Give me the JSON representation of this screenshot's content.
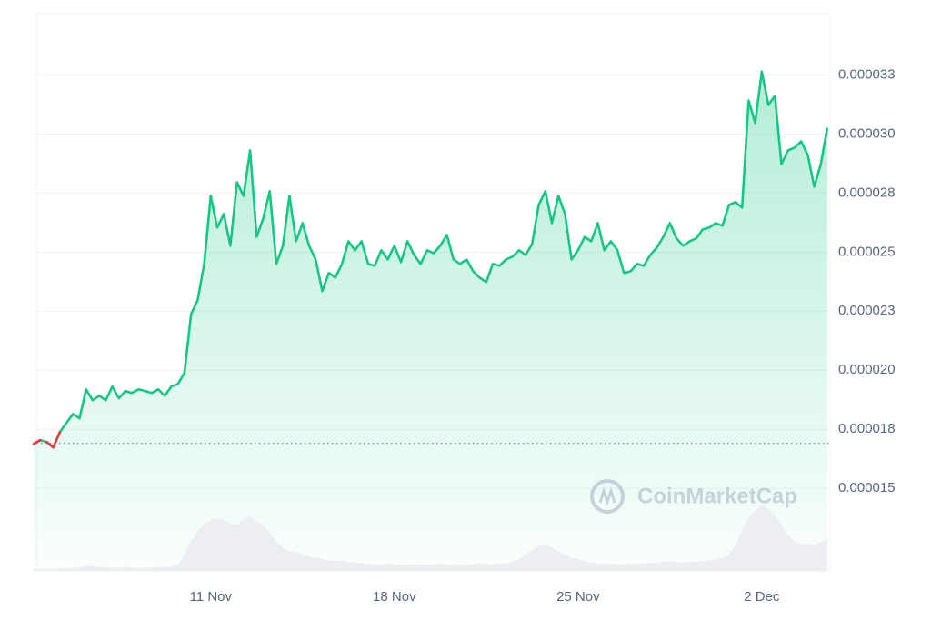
{
  "chart_data": {
    "type": "line",
    "categories": [
      null,
      null,
      null,
      null,
      null,
      null,
      null,
      null,
      null,
      null,
      null,
      null,
      null,
      null,
      null,
      null,
      null,
      null,
      null,
      null,
      null,
      null,
      null,
      null,
      null,
      null,
      null,
      "11 Nov",
      null,
      null,
      null,
      null,
      null,
      null,
      null,
      null,
      null,
      null,
      null,
      null,
      null,
      null,
      null,
      null,
      null,
      null,
      null,
      null,
      null,
      null,
      null,
      null,
      null,
      null,
      null,
      "18 Nov",
      null,
      null,
      null,
      null,
      null,
      null,
      null,
      null,
      null,
      null,
      null,
      null,
      null,
      null,
      null,
      null,
      null,
      null,
      null,
      null,
      null,
      null,
      null,
      null,
      null,
      null,
      null,
      "25 Nov",
      null,
      null,
      null,
      null,
      null,
      null,
      null,
      null,
      null,
      null,
      null,
      null,
      null,
      null,
      null,
      null,
      null,
      null,
      null,
      null,
      null,
      null,
      null,
      null,
      null,
      null,
      null,
      "2 Dec",
      null,
      null,
      null,
      null,
      null,
      null,
      null,
      null,
      null,
      null
    ],
    "series": [
      {
        "color": "#16c784",
        "values": [
          1.688e-05,
          1.704e-05,
          1.696e-05,
          1.673e-05,
          1.738e-05,
          1.777e-05,
          1.815e-05,
          1.796e-05,
          1.919e-05,
          1.873e-05,
          1.892e-05,
          1.873e-05,
          1.931e-05,
          1.881e-05,
          1.912e-05,
          1.904e-05,
          1.919e-05,
          1.912e-05,
          1.904e-05,
          1.919e-05,
          1.892e-05,
          1.931e-05,
          1.942e-05,
          1.988e-05,
          2.238e-05,
          2.296e-05,
          2.45e-05,
          2.738e-05,
          2.604e-05,
          2.662e-05,
          2.527e-05,
          2.796e-05,
          2.738e-05,
          2.931e-05,
          2.565e-05,
          2.642e-05,
          2.758e-05,
          2.45e-05,
          2.527e-05,
          2.738e-05,
          2.546e-05,
          2.623e-05,
          2.527e-05,
          2.469e-05,
          2.335e-05,
          2.412e-05,
          2.392e-05,
          2.45e-05,
          2.546e-05,
          2.508e-05,
          2.546e-05,
          2.45e-05,
          2.442e-05,
          2.508e-05,
          2.469e-05,
          2.527e-05,
          2.458e-05,
          2.546e-05,
          2.488e-05,
          2.45e-05,
          2.508e-05,
          2.496e-05,
          2.527e-05,
          2.573e-05,
          2.469e-05,
          2.45e-05,
          2.469e-05,
          2.419e-05,
          2.392e-05,
          2.373e-05,
          2.45e-05,
          2.442e-05,
          2.469e-05,
          2.481e-05,
          2.508e-05,
          2.488e-05,
          2.535e-05,
          2.7e-05,
          2.758e-05,
          2.623e-05,
          2.738e-05,
          2.662e-05,
          2.469e-05,
          2.508e-05,
          2.565e-05,
          2.546e-05,
          2.623e-05,
          2.508e-05,
          2.546e-05,
          2.508e-05,
          2.412e-05,
          2.419e-05,
          2.45e-05,
          2.442e-05,
          2.488e-05,
          2.519e-05,
          2.565e-05,
          2.623e-05,
          2.558e-05,
          2.527e-05,
          2.546e-05,
          2.558e-05,
          2.596e-05,
          2.604e-05,
          2.623e-05,
          2.612e-05,
          2.7e-05,
          2.712e-05,
          2.688e-05,
          3.142e-05,
          3.046e-05,
          3.265e-05,
          3.123e-05,
          3.162e-05,
          2.873e-05,
          2.931e-05,
          2.942e-05,
          2.969e-05,
          2.912e-05,
          2.777e-05,
          2.873e-05,
          3.027e-05
        ]
      }
    ],
    "down_color": "#ea3943",
    "baseline": 1.69e-05,
    "ylim": [
      1.15e-05,
      3.51e-05
    ],
    "yticks": [
      1.5e-05,
      {
        "value": 1.75e-05,
        "label": "0.000018"
      },
      {
        "value": 2e-05,
        "label": "0.000020"
      },
      {
        "value": 2.25e-05,
        "label": "0.000023"
      },
      2.5e-05,
      {
        "value": 2.75e-05,
        "label": "0.000028"
      },
      {
        "value": 3e-05,
        "label": "0.000030"
      },
      {
        "value": 3.25e-05,
        "label": "0.000033"
      }
    ],
    "grid": true,
    "volume": {
      "color": "#eceef2",
      "values": [
        3,
        3,
        3,
        3,
        4,
        4,
        5,
        6,
        8,
        7,
        6,
        6,
        5,
        5,
        6,
        5,
        5,
        6,
        5,
        6,
        6,
        7,
        10,
        25,
        45,
        60,
        72,
        78,
        80,
        78,
        72,
        70,
        80,
        84,
        75,
        70,
        58,
        45,
        35,
        30,
        28,
        25,
        22,
        20,
        18,
        16,
        15,
        16,
        14,
        13,
        12,
        11,
        10,
        10,
        11,
        10,
        9,
        10,
        10,
        9,
        10,
        10,
        11,
        10,
        9,
        9,
        10,
        10,
        12,
        11,
        10,
        11,
        12,
        14,
        18,
        25,
        32,
        38,
        40,
        36,
        30,
        24,
        20,
        18,
        15,
        13,
        12,
        11,
        11,
        10,
        10,
        11,
        11,
        12,
        12,
        13,
        14,
        15,
        14,
        13,
        14,
        14,
        15,
        16,
        18,
        20,
        25,
        40,
        62,
        80,
        92,
        100,
        95,
        85,
        70,
        55,
        45,
        40,
        42,
        40,
        44,
        48
      ]
    },
    "watermark": "CoinMarketCap"
  }
}
